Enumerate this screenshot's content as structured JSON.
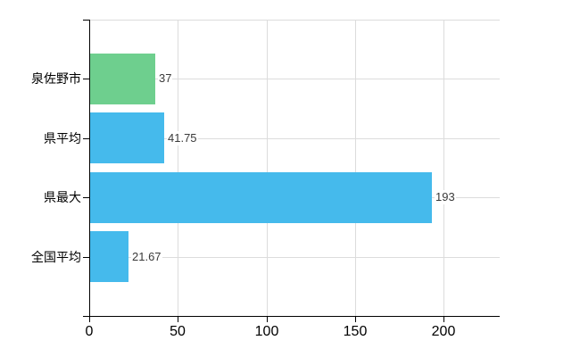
{
  "chart_data": {
    "type": "bar",
    "orientation": "horizontal",
    "title": "",
    "categories": [
      "泉佐野市",
      "県平均",
      "県最大",
      "全国平均"
    ],
    "series": [
      {
        "name": "values",
        "values": [
          37,
          41.75,
          193,
          21.67
        ]
      }
    ],
    "value_labels": [
      "37",
      "41.75",
      "193",
      "21.67"
    ],
    "bar_colors": [
      "#6ecf8e",
      "#45baec",
      "#45baec",
      "#45baec"
    ],
    "xlim": [
      0,
      231.7
    ],
    "xticks": [
      0,
      50,
      100,
      150,
      200
    ],
    "xtick_labels": [
      "0",
      "50",
      "100",
      "150",
      "200"
    ],
    "grid": true,
    "legend_visible": false,
    "colors": {
      "grid": "#dcdcdc",
      "axis": "#000000",
      "category_label": "#000000",
      "value_label": "#3a3a3a",
      "tick_label": "#000000",
      "background": "#ffffff"
    }
  }
}
